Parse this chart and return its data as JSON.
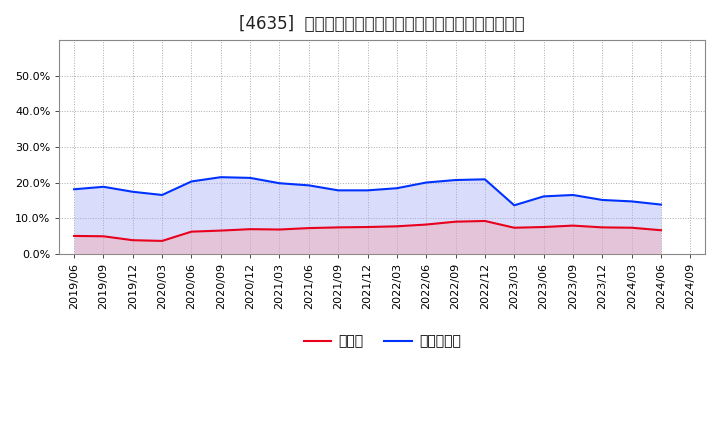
{
  "title": "[4635]  現須金、有利子負債の総資産に対する比率の推移",
  "x_labels": [
    "2019/06",
    "2019/09",
    "2019/12",
    "2020/03",
    "2020/06",
    "2020/09",
    "2020/12",
    "2021/03",
    "2021/06",
    "2021/09",
    "2021/12",
    "2022/03",
    "2022/06",
    "2022/09",
    "2022/12",
    "2023/03",
    "2023/06",
    "2023/09",
    "2023/12",
    "2024/03",
    "2024/06",
    "2024/09"
  ],
  "cash_values": [
    0.05,
    0.049,
    0.038,
    0.036,
    0.062,
    0.065,
    0.069,
    0.068,
    0.072,
    0.074,
    0.075,
    0.077,
    0.082,
    0.09,
    0.092,
    0.073,
    0.075,
    0.079,
    0.074,
    0.073,
    0.066,
    null
  ],
  "debt_values": [
    0.181,
    0.188,
    0.174,
    0.165,
    0.203,
    0.215,
    0.213,
    0.198,
    0.192,
    0.178,
    0.178,
    0.184,
    0.2,
    0.207,
    0.209,
    0.136,
    0.161,
    0.165,
    0.151,
    0.147,
    0.138,
    null
  ],
  "cash_color": "#e8001c",
  "debt_color": "#0032ff",
  "cash_fill_color": "#f4a0a8",
  "debt_fill_color": "#a0a8f4",
  "plot_bg_color": "#ffffff",
  "fig_bg_color": "#ffffff",
  "grid_color": "#aaaaaa",
  "ylim": [
    0.0,
    0.6
  ],
  "yticks": [
    0.0,
    0.1,
    0.2,
    0.3,
    0.4,
    0.5
  ],
  "legend_cash": "現須金",
  "legend_debt": "有利子負債",
  "title_prefix": "[4635]",
  "title_fontsize": 12,
  "axis_fontsize": 8,
  "legend_fontsize": 10,
  "linewidth": 1.5,
  "fill_alpha": 0.4
}
